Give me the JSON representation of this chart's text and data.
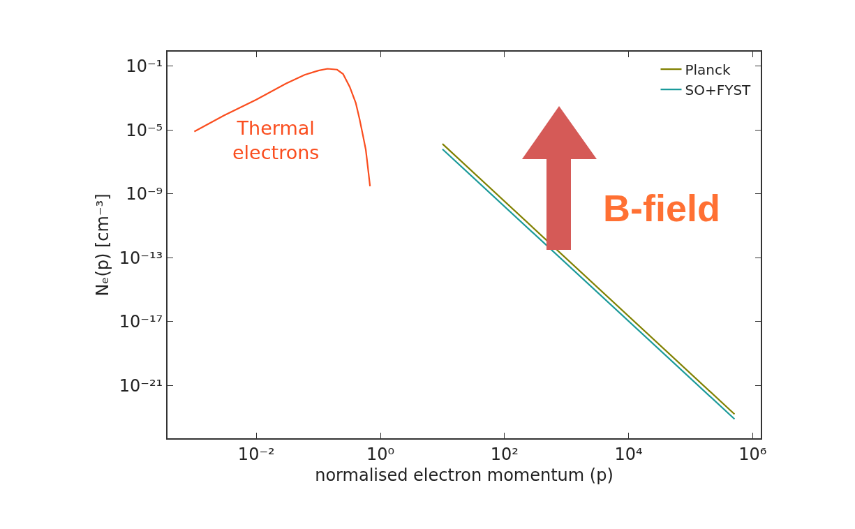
{
  "chart_data": {
    "type": "line",
    "xlabel": "normalised electron momentum (p)",
    "ylabel": "Nₑ(p) [cm⁻³]",
    "log": "xy",
    "xlim": [
      0.00037,
      1350000
    ],
    "ylim": [
      5e-25,
      0.8
    ],
    "xticks": [
      {
        "value": 0.01,
        "label": "10⁻²"
      },
      {
        "value": 1,
        "label": "10⁰"
      },
      {
        "value": 100,
        "label": "10²"
      },
      {
        "value": 10000,
        "label": "10⁴"
      },
      {
        "value": 1000000,
        "label": "10⁶"
      }
    ],
    "yticks": [
      {
        "value": 0.1,
        "label": "10⁻¹"
      },
      {
        "value": 1e-05,
        "label": "10⁻⁵"
      },
      {
        "value": 1e-09,
        "label": "10⁻⁹"
      },
      {
        "value": 1e-13,
        "label": "10⁻¹³"
      },
      {
        "value": 1e-17,
        "label": "10⁻¹⁷"
      },
      {
        "value": 1e-21,
        "label": "10⁻²¹"
      }
    ],
    "grid": false,
    "legend": "top right",
    "series": [
      {
        "name": "Thermal electrons",
        "color": "#fa4d1e",
        "x": [
          0.001,
          0.003,
          0.01,
          0.03,
          0.06,
          0.1,
          0.14,
          0.2,
          0.25,
          0.32,
          0.4,
          0.46,
          0.52,
          0.58,
          0.63,
          0.68
        ],
        "values": [
          8e-06,
          8e-05,
          0.0008,
          0.008,
          0.028,
          0.052,
          0.068,
          0.06,
          0.032,
          0.005,
          0.0005,
          5e-05,
          5e-06,
          6e-07,
          4e-08,
          3e-09
        ]
      },
      {
        "name": "Planck",
        "color": "#808000",
        "x": [
          10,
          510000
        ],
        "values": [
          1.35e-06,
          1.6e-23
        ]
      },
      {
        "name": "SO+FYST",
        "color": "#1a9a9a",
        "x": [
          10,
          510000
        ],
        "values": [
          6.3e-07,
          8e-24
        ]
      }
    ],
    "annotations": [
      "B-field"
    ]
  }
}
